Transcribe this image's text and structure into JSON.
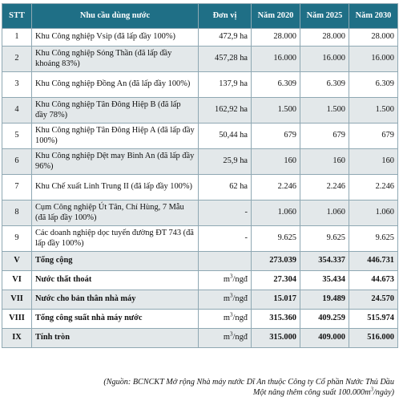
{
  "table": {
    "headers": [
      "STT",
      "Nhu cầu dùng nước",
      "Đơn vị",
      "Năm 2020",
      "Năm 2025",
      "Năm 2030"
    ],
    "rows": [
      {
        "stt": "1",
        "name": "Khu Công nghiệp Vsip (đã lấp đầy 100%)",
        "unit": "472,9 ha",
        "y2020": "28.000",
        "y2025": "28.000",
        "y2030": "28.000"
      },
      {
        "stt": "2",
        "name": "Khu Công nghiệp Sóng Thần (đã lấp đầy khoảng 83%)",
        "unit": "457,28 ha",
        "y2020": "16.000",
        "y2025": "16.000",
        "y2030": "16.000"
      },
      {
        "stt": "3",
        "name": "Khu Công nghiệp Đồng An (đã lấp đầy 100%)",
        "unit": "137,9 ha",
        "y2020": "6.309",
        "y2025": "6.309",
        "y2030": "6.309"
      },
      {
        "stt": "4",
        "name": "Khu Công nghiệp Tân Đông Hiệp B (đã lấp đầy 78%)",
        "unit": "162,92 ha",
        "y2020": "1.500",
        "y2025": "1.500",
        "y2030": "1.500"
      },
      {
        "stt": "5",
        "name": "Khu Công nghiệp Tân Đông Hiệp A (đã lấp đầy 100%)",
        "unit": "50,44 ha",
        "y2020": "679",
        "y2025": "679",
        "y2030": "679"
      },
      {
        "stt": "6",
        "name": "Khu Công nghiệp Dệt may Bình An (đã lấp đầy 96%)",
        "unit": "25,9 ha",
        "y2020": "160",
        "y2025": "160",
        "y2030": "160"
      },
      {
        "stt": "7",
        "name": "Khu Chế xuất Linh Trung II (đã lấp đầy 100%)",
        "unit": "62 ha",
        "y2020": "2.246",
        "y2025": "2.246",
        "y2030": "2.246"
      },
      {
        "stt": "8",
        "name": "Cụm Công nghiệp Út Tân, Chí Hùng, 7 Mẫu (đã lấp đầy 100%)",
        "unit": "-",
        "y2020": "1.060",
        "y2025": "1.060",
        "y2030": "1.060"
      },
      {
        "stt": "9",
        "name": "Các doanh nghiệp dọc tuyến đường ĐT 743 (đã lấp đầy 100%)",
        "unit": "-",
        "y2020": "9.625",
        "y2025": "9.625",
        "y2030": "9.625"
      }
    ],
    "summary": [
      {
        "stt": "V",
        "name": "Tổng cộng",
        "unit": "",
        "y2020": "273.039",
        "y2025": "354.337",
        "y2030": "446.731"
      },
      {
        "stt": "VI",
        "name": "Nước thất thoát",
        "unit": "m",
        "unit_sup": "3",
        "unit_tail": "/ngđ",
        "y2020": "27.304",
        "y2025": "35.434",
        "y2030": "44.673"
      },
      {
        "stt": "VII",
        "name": "Nước cho bản thân nhà máy",
        "unit": "m",
        "unit_sup": "3",
        "unit_tail": "/ngđ",
        "y2020": "15.017",
        "y2025": "19.489",
        "y2030": "24.570"
      },
      {
        "stt": "VIII",
        "name": "Tổng công suất nhà máy nước",
        "unit": "m",
        "unit_sup": "3",
        "unit_tail": "/ngđ",
        "y2020": "315.360",
        "y2025": "409.259",
        "y2030": "515.974"
      },
      {
        "stt": "IX",
        "name": "Tính tròn",
        "unit": "m",
        "unit_sup": "3",
        "unit_tail": "/ngđ",
        "y2020": "315.000",
        "y2025": "409.000",
        "y2030": "516.000"
      }
    ]
  },
  "source": {
    "line1": "(Nguồn: BCNCKT Mở rộng Nhà máy nước Dĩ An thuộc Công ty Cổ phần Nước Thủ Dầu",
    "line2a": "Một nâng thêm công suất 100.000m",
    "line2sup": "3",
    "line2b": "/ngày)"
  },
  "colors": {
    "header_bg": "#1f6f86",
    "header_text": "#ffffff",
    "row_alt_bg": "#e3e8ea",
    "border": "#8fa8b3"
  }
}
